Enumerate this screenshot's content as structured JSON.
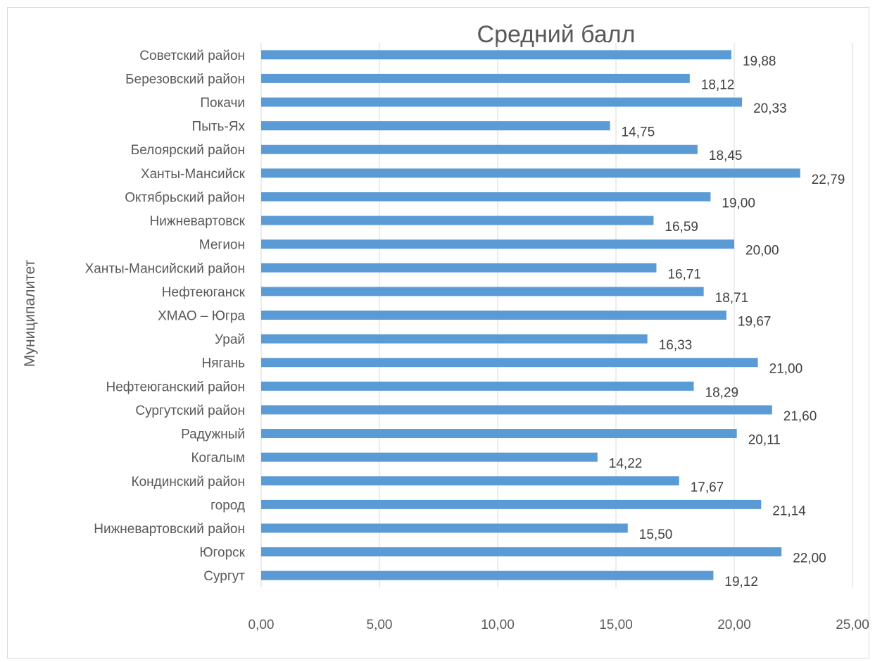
{
  "chart_data": {
    "type": "bar",
    "orientation": "horizontal",
    "title": "Средний балл",
    "ylabel": "Муниципалитет",
    "xlabel": "",
    "xlim": [
      0,
      25
    ],
    "x_ticks": [
      "0,00",
      "5,00",
      "10,00",
      "15,00",
      "20,00",
      "25,00"
    ],
    "grid": "vertical",
    "bar_color": "#5b9bd5",
    "categories": [
      "Советский район",
      "Березовский район",
      "Покачи",
      "Пыть-Ях",
      "Белоярский район",
      "Ханты-Мансийск",
      "Октябрьский район",
      "Нижневартовск",
      "Мегион",
      "Ханты-Мансийский район",
      "Нефтеюганск",
      "ХМАО – Югра",
      "Урай",
      "Нягань",
      "Нефтеюганский район",
      "Сургутский район",
      "Радужный",
      "Когалым",
      "Кондинский район",
      "город",
      "Нижневартовский район",
      "Югорск",
      "Сургут"
    ],
    "values": [
      19.88,
      18.12,
      20.33,
      14.75,
      18.45,
      22.79,
      19.0,
      16.59,
      20.0,
      16.71,
      18.71,
      19.67,
      16.33,
      21.0,
      18.29,
      21.6,
      20.11,
      14.22,
      17.67,
      21.14,
      15.5,
      22.0,
      19.12
    ],
    "data_labels": [
      "19,88",
      "18,12",
      "20,33",
      "14,75",
      "18,45",
      "22,79",
      "19,00",
      "16,59",
      "20,00",
      "16,71",
      "18,71",
      "19,67",
      "16,33",
      "21,00",
      "18,29",
      "21,60",
      "20,11",
      "14,22",
      "17,67",
      "21,14",
      "15,50",
      "22,00",
      "19,12"
    ]
  }
}
